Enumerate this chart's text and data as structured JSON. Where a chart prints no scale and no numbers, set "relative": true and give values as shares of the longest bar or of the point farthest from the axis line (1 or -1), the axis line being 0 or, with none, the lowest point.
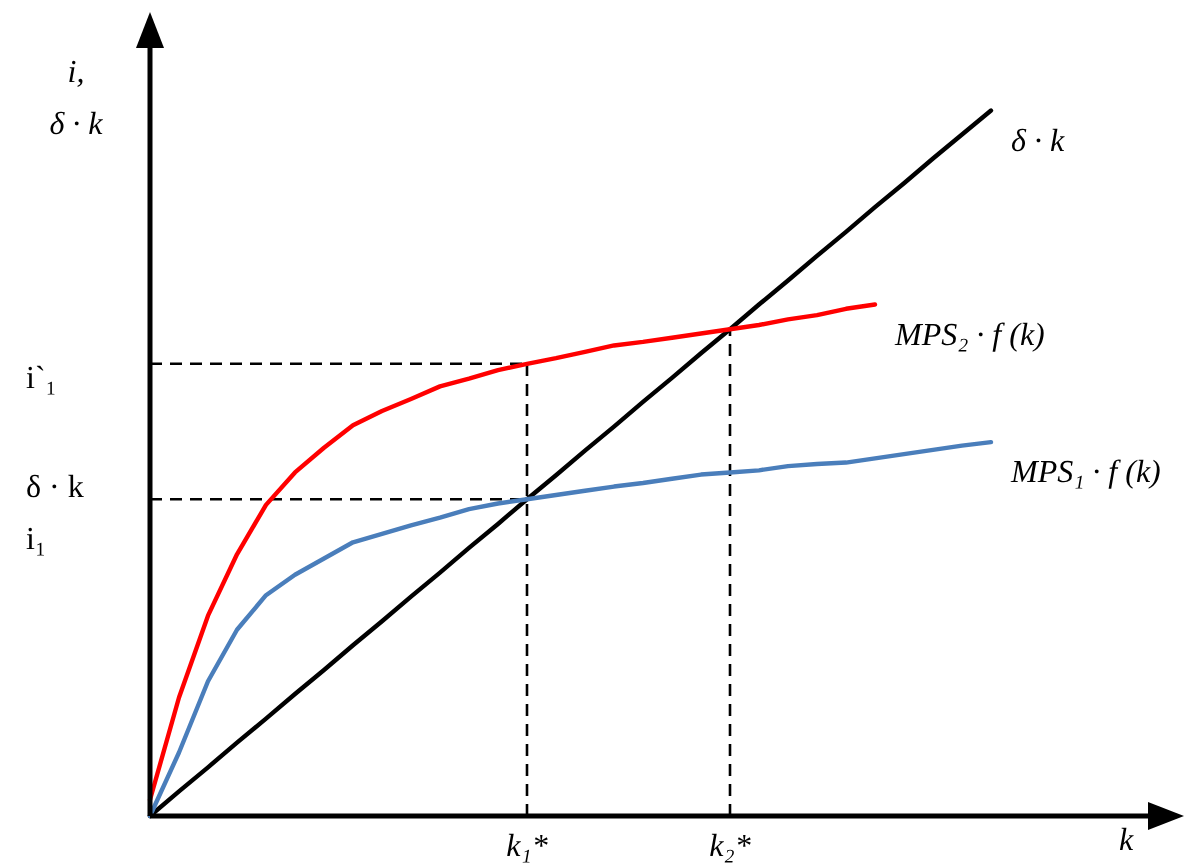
{
  "chart_data": {
    "type": "line",
    "relative": true,
    "xlabel": "k",
    "ylabel": "i,\nδ · k",
    "categories": [
      null,
      null,
      null,
      null,
      null,
      null,
      null,
      null,
      null,
      null,
      null,
      null,
      null,
      "k₁*",
      null,
      null,
      null,
      null,
      null,
      null,
      "k₂*",
      null,
      null,
      null,
      null,
      null,
      null,
      null,
      null,
      null,
      null,
      null,
      null,
      null,
      null,
      null
    ],
    "series": [
      {
        "name": "δ · k",
        "color": "#000000",
        "values": [
          0,
          0.035,
          0.069,
          0.104,
          0.138,
          0.173,
          0.207,
          0.242,
          0.276,
          0.311,
          0.345,
          0.38,
          0.414,
          0.449,
          0.483,
          0.518,
          0.552,
          0.587,
          0.621,
          0.656,
          0.69,
          0.725,
          0.759,
          0.794,
          0.828,
          0.863,
          0.897,
          0.932,
          0.966,
          1,
          null,
          null,
          null,
          null,
          null,
          null
        ]
      },
      {
        "name": "MPS₂ · f (k)",
        "color": "#ff0000",
        "values": [
          0.023,
          0.168,
          0.284,
          0.371,
          0.441,
          0.487,
          0.522,
          0.554,
          0.574,
          0.591,
          0.609,
          0.62,
          0.632,
          0.641,
          0.649,
          0.658,
          0.667,
          0.672,
          0.678,
          0.684,
          0.69,
          0.696,
          0.704,
          0.71,
          0.719,
          0.725,
          null,
          null,
          null,
          null,
          null,
          null,
          null,
          null,
          null,
          null
        ]
      },
      {
        "name": "MPS₁ · f (k)",
        "color": "#4a7ebb",
        "values": [
          0,
          0.09,
          0.191,
          0.264,
          0.313,
          0.342,
          0.365,
          0.388,
          0.4,
          0.412,
          0.423,
          0.435,
          0.443,
          0.449,
          0.455,
          0.461,
          0.467,
          0.472,
          0.478,
          0.484,
          0.487,
          0.49,
          0.496,
          0.499,
          0.501,
          0.507,
          0.513,
          0.519,
          0.525,
          0.53,
          null,
          null,
          null,
          null,
          null,
          null
        ]
      }
    ],
    "ref_lines": [
      {
        "axis": "y",
        "value": 0.641,
        "label": "i`₁",
        "line_style": "dashed",
        "color": "#000000"
      },
      {
        "axis": "y",
        "value": 0.449,
        "label": "δ · k\ni₁",
        "line_style": "dashed",
        "color": "#000000"
      },
      {
        "axis": "x",
        "value": "k₁*",
        "line_style": "dashed",
        "color": "#000000"
      },
      {
        "axis": "x",
        "value": "k₂*",
        "line_style": "dashed",
        "color": "#000000"
      }
    ]
  }
}
